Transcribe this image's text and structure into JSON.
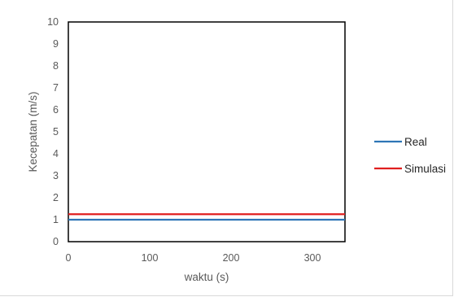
{
  "chart_data": {
    "type": "line",
    "xlabel": "waktu (s)",
    "ylabel": "Kecepatan (m/s)",
    "xlim": [
      0,
      340
    ],
    "ylim": [
      0,
      10
    ],
    "x_ticks": [
      0,
      100,
      200,
      300
    ],
    "y_ticks": [
      0,
      1,
      2,
      3,
      4,
      5,
      6,
      7,
      8,
      9,
      10
    ],
    "grid": false,
    "legend_position": "right",
    "series": [
      {
        "name": "Real",
        "color": "#2e75b6",
        "x": [
          0,
          340
        ],
        "y": [
          1.0,
          1.0
        ]
      },
      {
        "name": "Simulasi",
        "color": "#e01f1f",
        "x": [
          0,
          340
        ],
        "y": [
          1.25,
          1.25
        ]
      }
    ]
  }
}
